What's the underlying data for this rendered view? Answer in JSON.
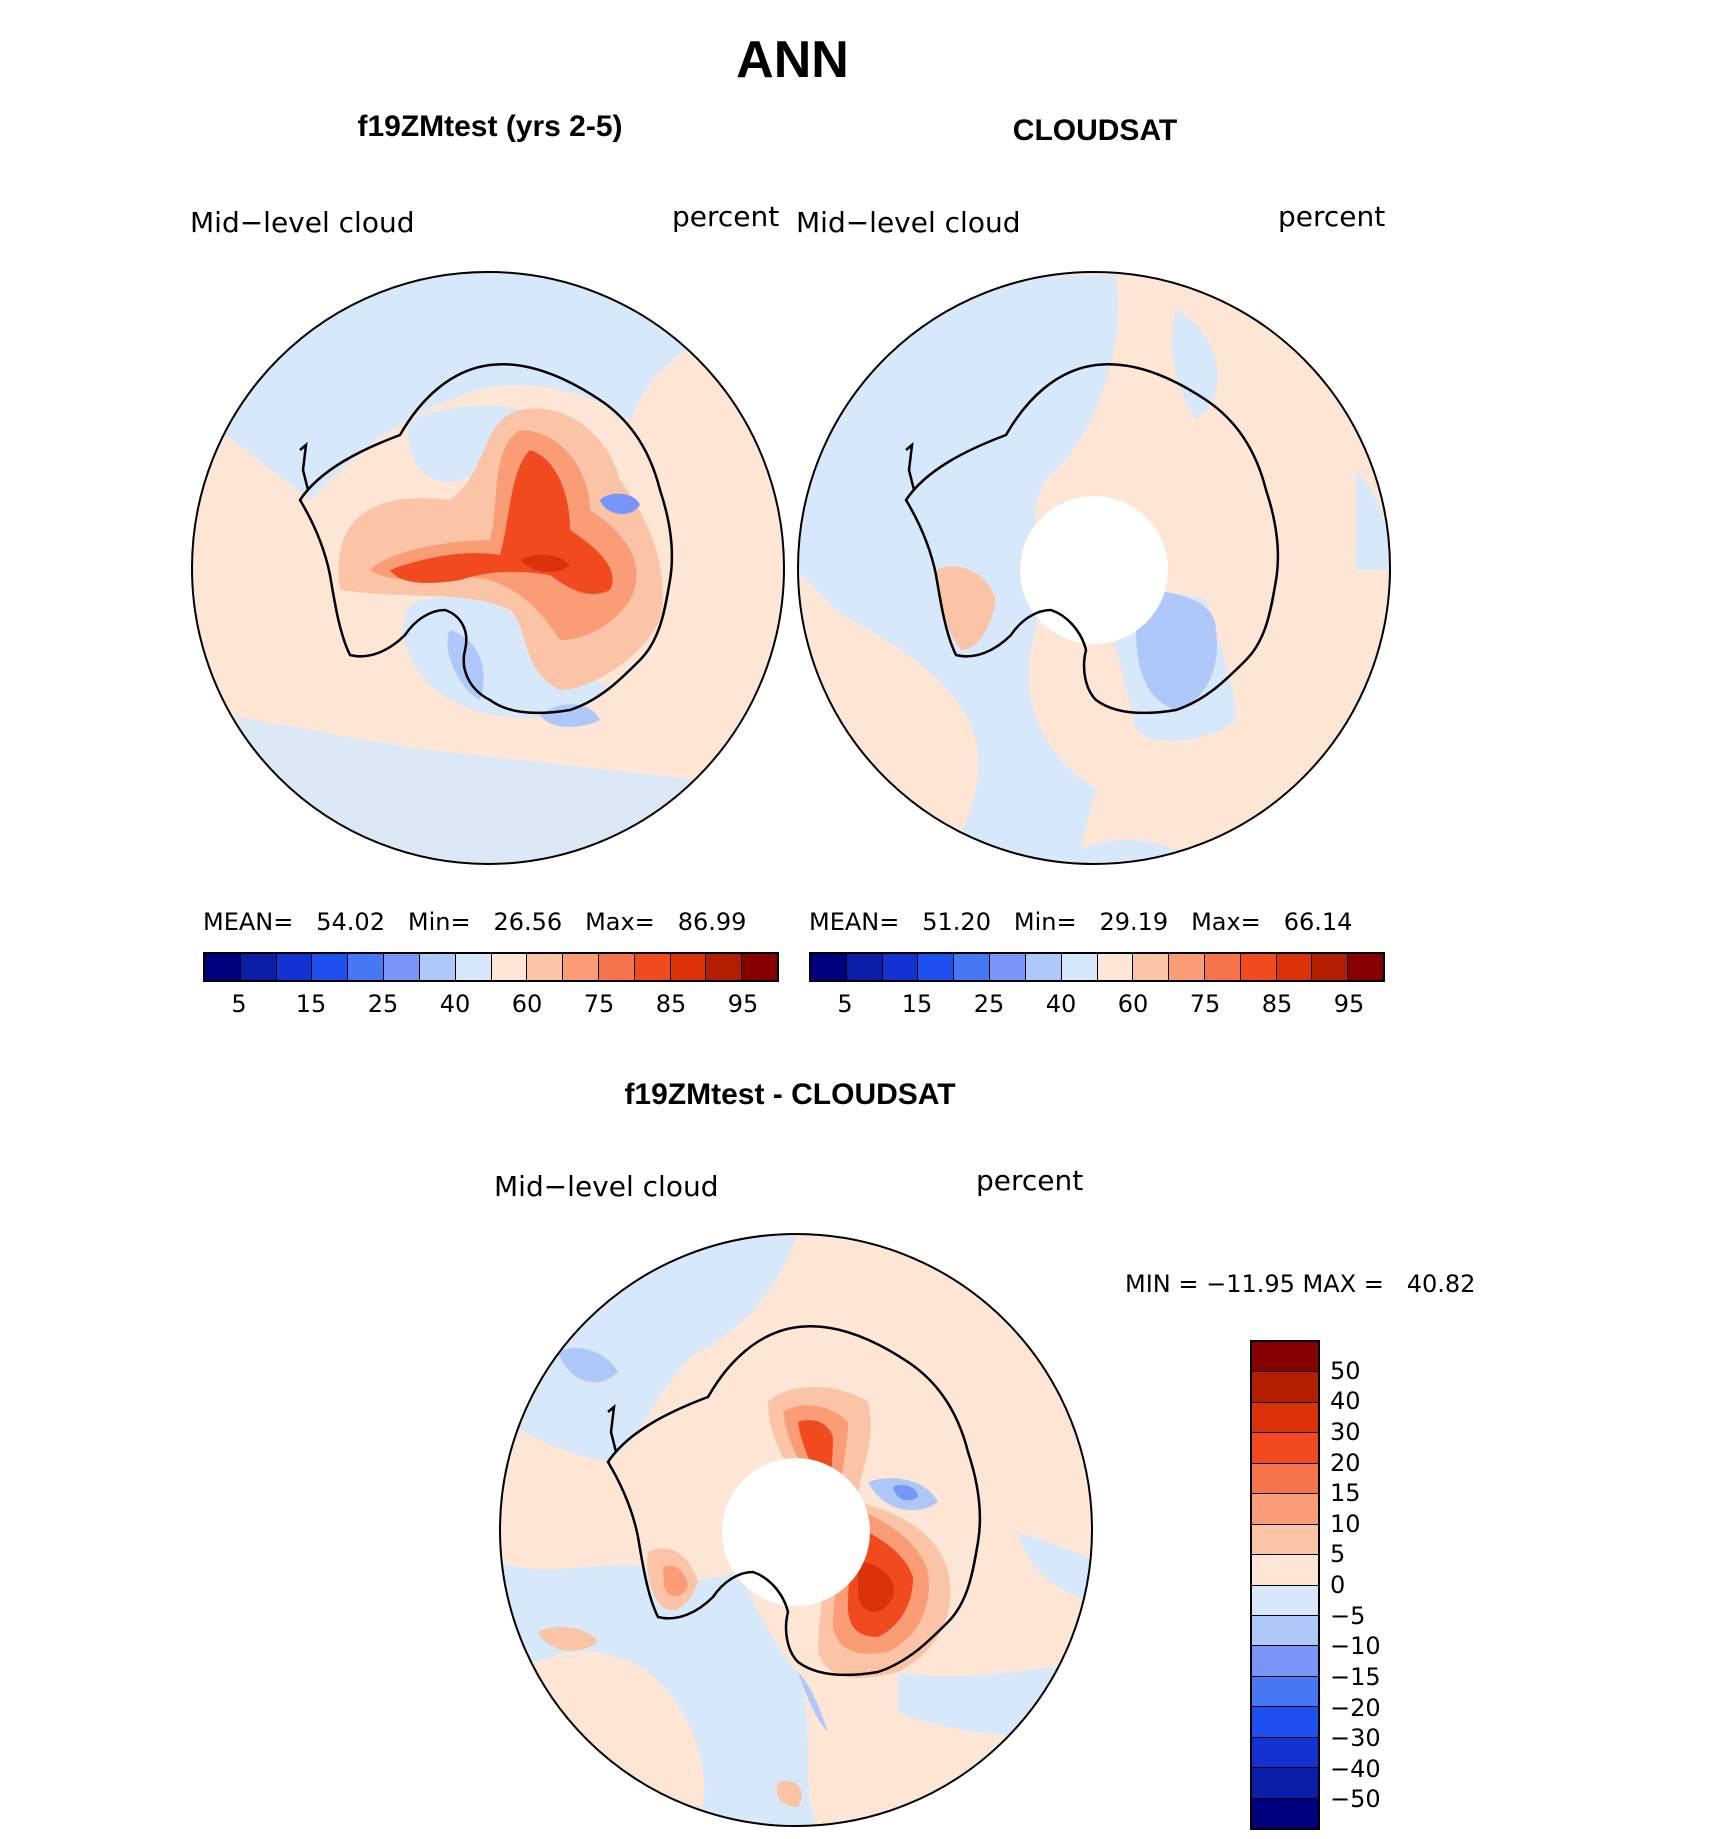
{
  "figure": {
    "title": "ANN"
  },
  "panels": {
    "model": {
      "title": "f19ZMtest (yrs 2-5)",
      "left_label": "Mid−level cloud",
      "right_label": "percent",
      "stats": {
        "mean_label": "MEAN=",
        "mean": "54.02",
        "min_label": "Min=",
        "min": "26.56",
        "max_label": "Max=",
        "max": "86.99"
      }
    },
    "obs": {
      "title": "CLOUDSAT",
      "left_label": "Mid−level cloud",
      "right_label": "percent",
      "stats": {
        "mean_label": "MEAN=",
        "mean": "51.20",
        "min_label": "Min=",
        "min": "29.19",
        "max_label": "Max=",
        "max": "66.14"
      }
    },
    "diff": {
      "title": "f19ZMtest - CLOUDSAT",
      "left_label": "Mid−level cloud",
      "right_label": "percent",
      "minmax": "MIN = −11.95 MAX =   40.82"
    }
  },
  "colorbar_abs": {
    "colors": [
      "#00007f",
      "#0a1ea8",
      "#1432d2",
      "#1e50f0",
      "#4678f5",
      "#7896fa",
      "#afc8fa",
      "#d7e8fb",
      "#fde6d6",
      "#fcc4a6",
      "#fa9c76",
      "#f5744b",
      "#f04a1e",
      "#dc320a",
      "#b41e00",
      "#870000"
    ],
    "tick_labels": [
      "5",
      "15",
      "25",
      "40",
      "60",
      "75",
      "85",
      "95"
    ]
  },
  "colorbar_diff": {
    "colors": [
      "#870000",
      "#b41e00",
      "#dc320a",
      "#f04a1e",
      "#f5744b",
      "#fa9c76",
      "#fcc4a6",
      "#fde6d6",
      "#d7e8fb",
      "#afc8fa",
      "#7896fa",
      "#4678f5",
      "#1e50f0",
      "#1432d2",
      "#0a1ea8",
      "#00007f"
    ],
    "tick_labels": [
      "50",
      "40",
      "30",
      "20",
      "15",
      "10",
      "5",
      "0",
      "−5",
      "−10",
      "−15",
      "−20",
      "−30",
      "−40",
      "−50"
    ]
  },
  "map_colors": {
    "ocean_warm": "#fde6d6",
    "ocean_cool": "#d7e8fb",
    "light_red": "#fcc4a6",
    "mid_red": "#fa9c76",
    "red": "#f04a1e",
    "dark_red": "#dc320a",
    "blue": "#7896fa",
    "light_blue": "#afc8fa"
  }
}
